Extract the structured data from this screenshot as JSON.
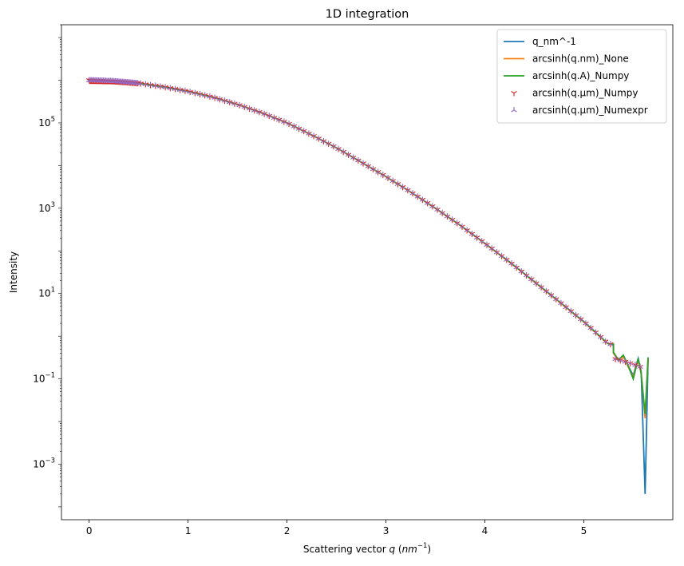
{
  "chart_data": {
    "type": "line",
    "title": "1D integration",
    "xlabel_prefix": "Scattering vector ",
    "xlabel_var": "q",
    "xlabel_unit_open": " (",
    "xlabel_unit": "nm",
    "xlabel_unit_exp": "−1",
    "xlabel_unit_close": ")",
    "ylabel": "Intensity",
    "xlim": [
      -0.28,
      5.9
    ],
    "ylim": [
      5e-05,
      20000000
    ],
    "yscale": "log",
    "grid": false,
    "legend_position": "top-right",
    "x_ticks": [
      {
        "value": 0,
        "label": "0"
      },
      {
        "value": 1,
        "label": "1"
      },
      {
        "value": 2,
        "label": "2"
      },
      {
        "value": 3,
        "label": "3"
      },
      {
        "value": 4,
        "label": "4"
      },
      {
        "value": 5,
        "label": "5"
      }
    ],
    "y_ticks": [
      {
        "value": 100000,
        "base": "10",
        "exp": "5"
      },
      {
        "value": 1000,
        "base": "10",
        "exp": "3"
      },
      {
        "value": 10,
        "base": "10",
        "exp": "1"
      },
      {
        "value": 0.1,
        "base": "10",
        "exp": "−1"
      },
      {
        "value": 0.001,
        "base": "10",
        "exp": "−3"
      }
    ],
    "curve": {
      "x": [
        0,
        0.25,
        0.5,
        0.75,
        1.0,
        1.25,
        1.5,
        1.75,
        2.0,
        2.25,
        2.5,
        2.75,
        3.0,
        3.25,
        3.5,
        3.75,
        4.0,
        4.25,
        4.5,
        4.75,
        5.0,
        5.25
      ],
      "y": [
        1000000,
        950000,
        850000,
        700000,
        550000,
        400000,
        270000,
        170000,
        100000,
        52000,
        26000,
        12000,
        5500,
        2400,
        1000,
        400,
        150,
        55,
        19,
        6.5,
        2.2,
        0.65
      ]
    },
    "series": [
      {
        "name": "q_nm^-1",
        "color": "#1f77b4",
        "style": "line",
        "tail_x": [
          5.3,
          5.35,
          5.4,
          5.45,
          5.5,
          5.55,
          5.58,
          5.62,
          5.65
        ],
        "tail_y": [
          0.4,
          0.28,
          0.35,
          0.2,
          0.12,
          0.3,
          0.15,
          0.0002,
          0.3
        ]
      },
      {
        "name": "arcsinh(q.nm)_None",
        "color": "#ff7f0e",
        "style": "line",
        "tail_x": [
          5.3,
          5.35,
          5.4,
          5.45,
          5.5,
          5.55,
          5.58,
          5.62,
          5.65
        ],
        "tail_y": [
          0.4,
          0.27,
          0.34,
          0.19,
          0.11,
          0.29,
          0.14,
          0.012,
          0.29
        ]
      },
      {
        "name": "arcsinh(q.A)_Numpy",
        "color": "#2ca02c",
        "style": "line",
        "tail_x": [
          5.3,
          5.35,
          5.4,
          5.45,
          5.5,
          5.55,
          5.58,
          5.62,
          5.65
        ],
        "tail_y": [
          0.42,
          0.28,
          0.36,
          0.2,
          0.1,
          0.3,
          0.13,
          0.015,
          0.32
        ]
      },
      {
        "name": "arcsinh(q.µm)_Numpy",
        "color": "#d62728",
        "style": "marker-tri-down"
      },
      {
        "name": "arcsinh(q.µm)_Numexpr",
        "color": "#9467bd",
        "style": "marker-tri-up"
      }
    ]
  }
}
